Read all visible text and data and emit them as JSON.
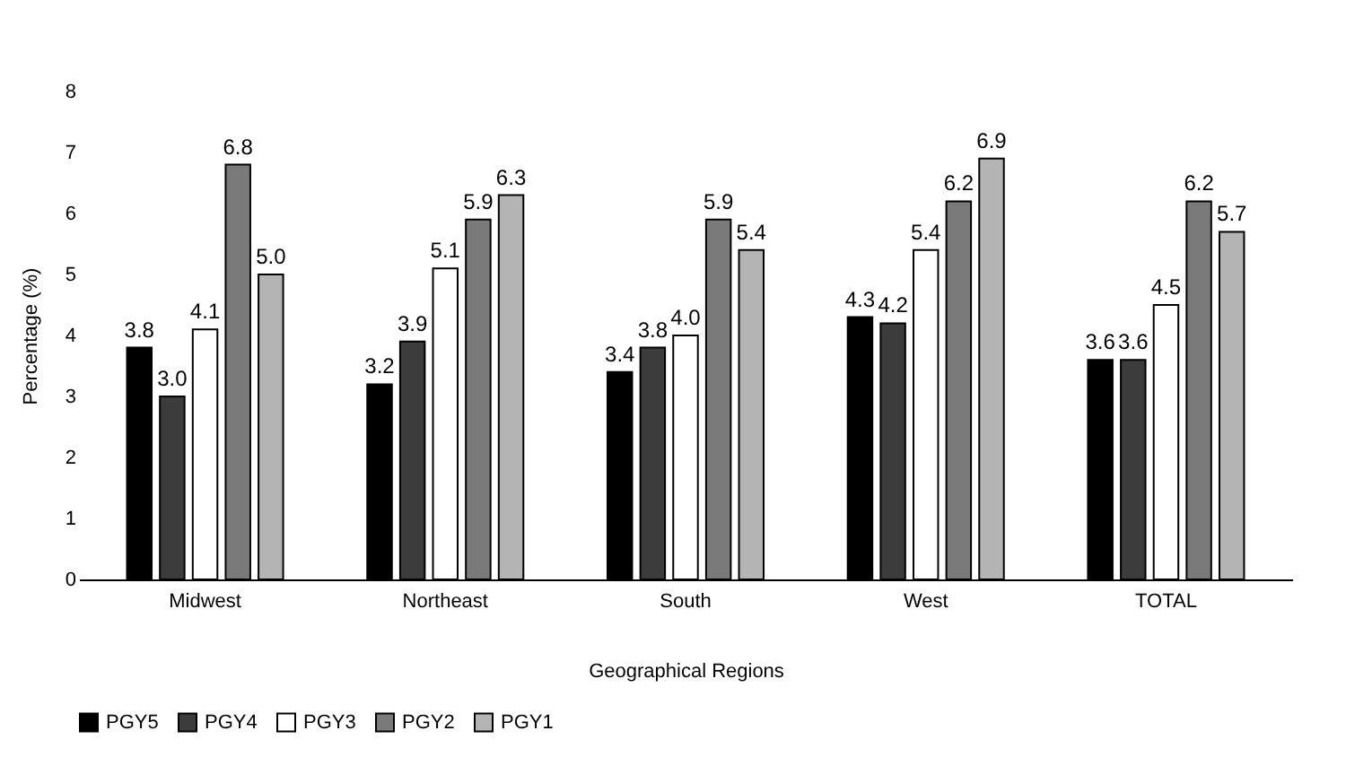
{
  "chart_data": {
    "type": "bar",
    "xlabel": "Geographical Regions",
    "ylabel": "Percentage (%)",
    "categories": [
      "Midwest",
      "Northeast",
      "South",
      "West",
      "TOTAL"
    ],
    "series": [
      {
        "name": "PGY5",
        "color": "#000000",
        "values": [
          3.8,
          3.2,
          3.4,
          4.3,
          3.6
        ],
        "value_labels": [
          "3.8",
          "3.2",
          "3.4",
          "4.3",
          "3.6"
        ]
      },
      {
        "name": "PGY4",
        "color": "#3c3c3c",
        "values": [
          3.0,
          3.9,
          3.8,
          4.2,
          3.6
        ],
        "value_labels": [
          "3.0",
          "3.9",
          "3.8",
          "4.2",
          "3.6"
        ]
      },
      {
        "name": "PGY3",
        "color": "#ffffff",
        "values": [
          4.1,
          5.1,
          4.0,
          5.4,
          4.5
        ],
        "value_labels": [
          "4.1",
          "5.1",
          "4.0",
          "5.4",
          "4.5"
        ]
      },
      {
        "name": "PGY2",
        "color": "#7a7a7a",
        "values": [
          6.8,
          5.9,
          5.9,
          6.2,
          6.2
        ],
        "value_labels": [
          "6.8",
          "5.9",
          "5.9",
          "6.2",
          "6.2"
        ]
      },
      {
        "name": "PGY1",
        "color": "#b4b4b4",
        "values": [
          5.0,
          6.3,
          5.4,
          6.9,
          5.7
        ],
        "value_labels": [
          "5.0",
          "6.3",
          "5.4",
          "6.9",
          "5.7"
        ]
      }
    ],
    "ylim": [
      0,
      8
    ],
    "yticks": [
      0,
      1,
      2,
      3,
      4,
      5,
      6,
      7,
      8
    ],
    "grid": false,
    "legend": "bottom"
  }
}
